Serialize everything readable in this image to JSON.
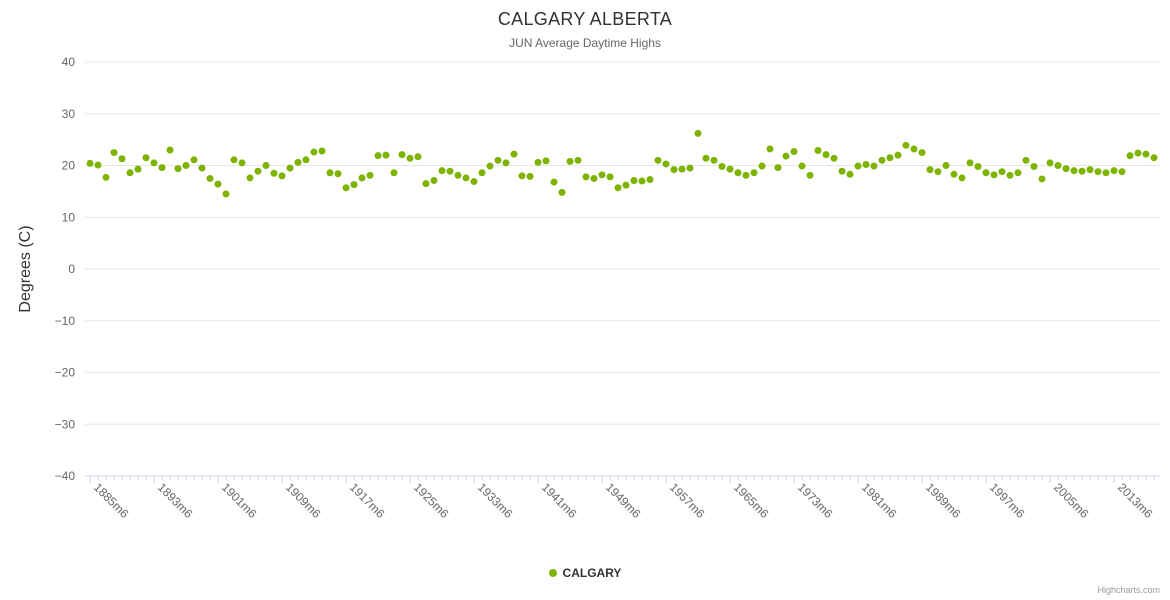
{
  "title": "CALGARY ALBERTA",
  "subtitle": "JUN Average Daytime Highs",
  "legend": {
    "series_label": "CALGARY"
  },
  "credits": "Highcharts.com",
  "colors": {
    "series": "#7cb400",
    "grid": "#e6e6e6",
    "axis_line": "#ccd6eb",
    "tick": "#ccd6eb",
    "axis_label": "#666666",
    "title": "#333333",
    "subtitle": "#666666",
    "credits": "#999999"
  },
  "chart_data": {
    "type": "scatter",
    "title": "CALGARY ALBERTA",
    "subtitle": "JUN Average Daytime Highs",
    "xlabel": "",
    "ylabel": "Degrees (C)",
    "ylim": [
      -40,
      40
    ],
    "ytick_labels": [
      "40",
      "30",
      "20",
      "10",
      "0",
      "−10",
      "−20",
      "−30",
      "−40"
    ],
    "ytick_values": [
      40,
      30,
      20,
      10,
      0,
      -10,
      -20,
      -30,
      -40
    ],
    "grid": true,
    "legend_position": "bottom-center",
    "xtick_labels": [
      "1885m6",
      "1893m6",
      "1901m6",
      "1909m6",
      "1917m6",
      "1925m6",
      "1933m6",
      "1941m6",
      "1949m6",
      "1957m6",
      "1965m6",
      "1973m6",
      "1981m6",
      "1989m6",
      "1997m6",
      "2005m6",
      "2013m6"
    ],
    "x_label_suffix": "m6",
    "x_label_interval": 8,
    "series": [
      {
        "name": "CALGARY",
        "start_year": 1885,
        "values": [
          20.4,
          20.1,
          17.7,
          22.5,
          21.3,
          18.6,
          19.3,
          21.5,
          20.5,
          19.6,
          23.0,
          19.4,
          20.0,
          21.1,
          19.5,
          17.5,
          16.4,
          14.5,
          21.1,
          20.5,
          17.6,
          18.9,
          20.0,
          18.5,
          18.0,
          19.5,
          20.6,
          21.1,
          22.6,
          22.8,
          18.6,
          18.4,
          15.7,
          16.3,
          17.6,
          18.1,
          21.9,
          22.0,
          18.6,
          22.1,
          21.4,
          21.7,
          16.5,
          17.1,
          19.0,
          18.9,
          18.1,
          17.6,
          16.9,
          18.6,
          19.9,
          21.0,
          20.5,
          22.2,
          18.0,
          17.9,
          20.6,
          20.9,
          16.8,
          14.8,
          20.8,
          21.0,
          17.8,
          17.5,
          18.2,
          17.8,
          15.7,
          16.2,
          17.1,
          17.0,
          17.3,
          21.0,
          20.3,
          19.2,
          19.3,
          19.5,
          26.2,
          21.4,
          21.0,
          19.8,
          19.3,
          18.6,
          18.1,
          18.6,
          19.9,
          23.2,
          19.6,
          21.8,
          22.7,
          19.9,
          18.1,
          22.9,
          22.1,
          21.4,
          18.9,
          18.3,
          19.9,
          20.2,
          19.9,
          21.0,
          21.5,
          22.0,
          23.9,
          23.2,
          22.5,
          19.2,
          18.8,
          20.0,
          18.3,
          17.6,
          20.5,
          19.8,
          18.6,
          18.2,
          18.8,
          18.1,
          18.6,
          21.0,
          19.8,
          17.4,
          20.5,
          20.0,
          19.4,
          19.0,
          18.9,
          19.2,
          18.8,
          18.6,
          19.0,
          18.8,
          21.9,
          22.4,
          22.2,
          21.5
        ]
      }
    ]
  }
}
